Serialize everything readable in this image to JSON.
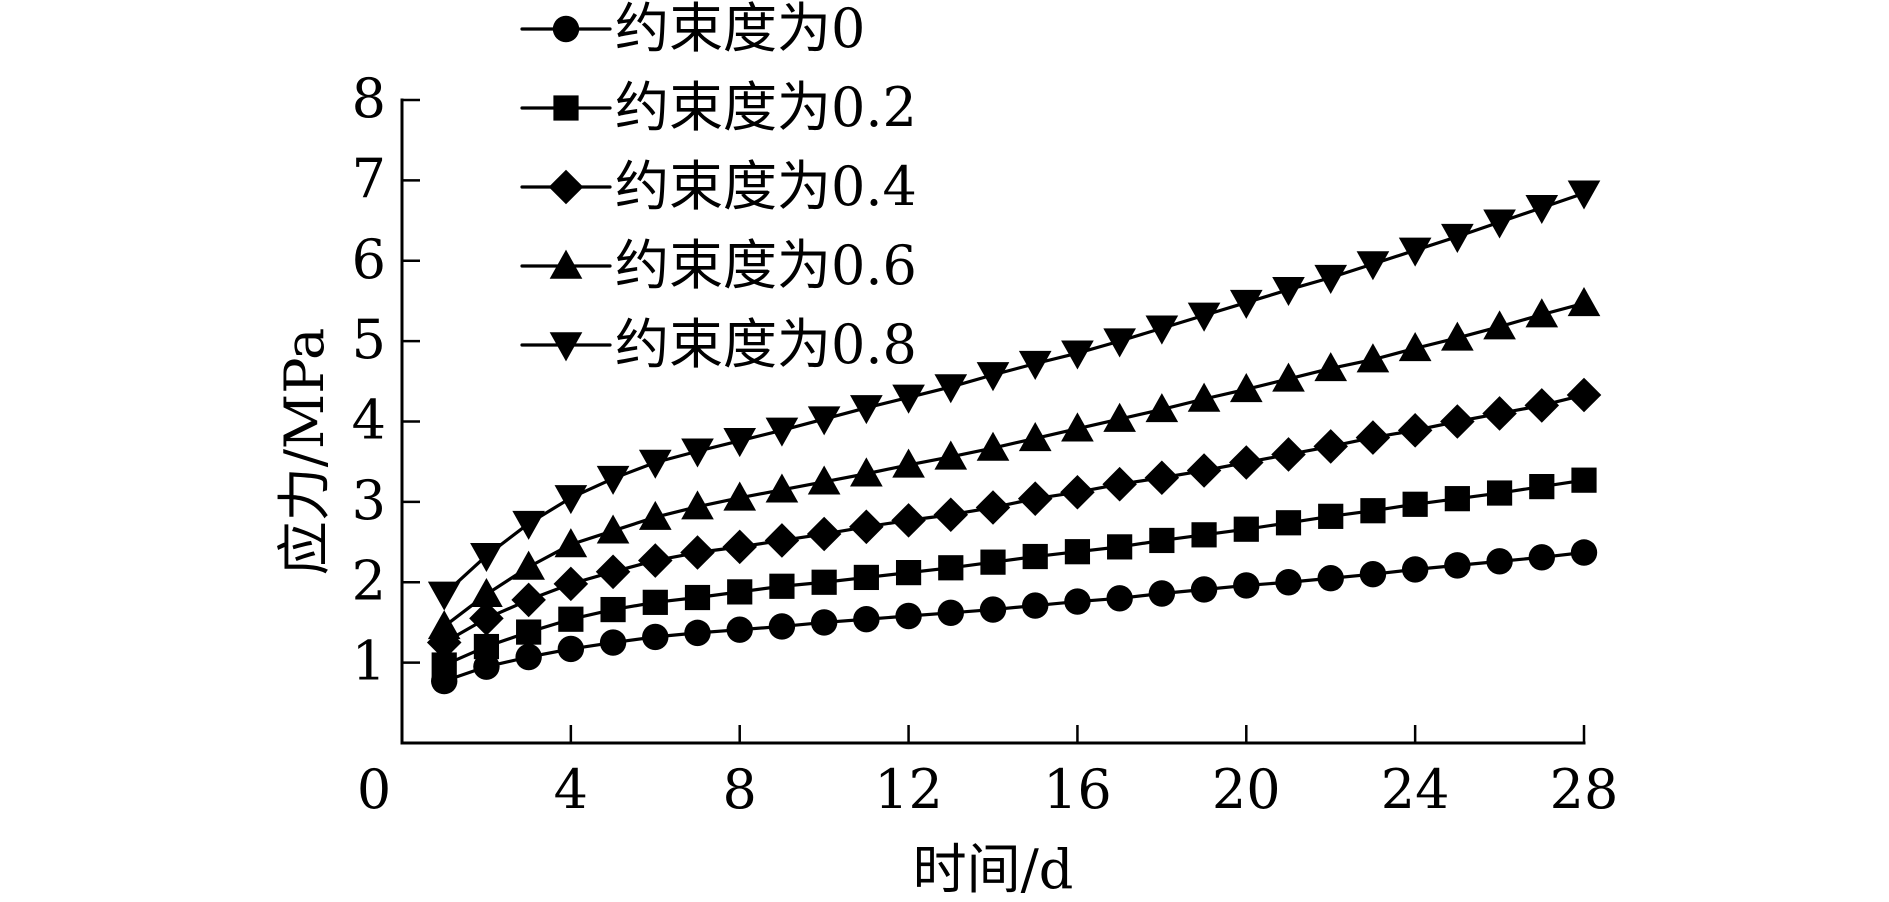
{
  "chart_data": {
    "type": "line",
    "title": "",
    "xlabel": "时间/d",
    "ylabel": "应力/MPa",
    "xlim": [
      0,
      28
    ],
    "ylim": [
      0,
      8
    ],
    "x_ticks": [
      0,
      4,
      8,
      12,
      16,
      20,
      24,
      28
    ],
    "y_ticks": [
      1,
      2,
      3,
      4,
      5,
      6,
      7,
      8
    ],
    "grid": false,
    "legend_position": "top-left",
    "line_color": "#000000",
    "x": [
      1,
      2,
      3,
      4,
      5,
      6,
      7,
      8,
      9,
      10,
      11,
      12,
      13,
      14,
      15,
      16,
      17,
      18,
      19,
      20,
      21,
      22,
      23,
      24,
      25,
      26,
      27,
      28
    ],
    "series": [
      {
        "name": "约束度为0",
        "marker": "circle",
        "values": [
          0.77,
          0.95,
          1.07,
          1.17,
          1.25,
          1.32,
          1.37,
          1.41,
          1.45,
          1.5,
          1.54,
          1.58,
          1.62,
          1.66,
          1.71,
          1.76,
          1.8,
          1.86,
          1.91,
          1.96,
          2.0,
          2.05,
          2.1,
          2.16,
          2.21,
          2.26,
          2.31,
          2.37
        ]
      },
      {
        "name": "约束度为0.2",
        "marker": "square",
        "values": [
          0.97,
          1.2,
          1.38,
          1.54,
          1.66,
          1.75,
          1.81,
          1.88,
          1.95,
          2.0,
          2.06,
          2.12,
          2.18,
          2.25,
          2.32,
          2.38,
          2.44,
          2.52,
          2.59,
          2.66,
          2.74,
          2.82,
          2.89,
          2.97,
          3.04,
          3.11,
          3.19,
          3.27
        ]
      },
      {
        "name": "约束度为0.4",
        "marker": "diamond",
        "values": [
          1.25,
          1.55,
          1.78,
          1.98,
          2.13,
          2.27,
          2.37,
          2.44,
          2.52,
          2.6,
          2.69,
          2.77,
          2.84,
          2.93,
          3.04,
          3.12,
          3.22,
          3.3,
          3.39,
          3.49,
          3.59,
          3.69,
          3.8,
          3.89,
          4.0,
          4.1,
          4.2,
          4.33
        ]
      },
      {
        "name": "约束度为0.6",
        "marker": "triangle-up",
        "values": [
          1.45,
          1.85,
          2.19,
          2.47,
          2.64,
          2.81,
          2.94,
          3.05,
          3.15,
          3.25,
          3.35,
          3.46,
          3.56,
          3.67,
          3.79,
          3.91,
          4.03,
          4.15,
          4.28,
          4.4,
          4.53,
          4.66,
          4.77,
          4.91,
          5.04,
          5.18,
          5.33,
          5.47
        ]
      },
      {
        "name": "约束度为0.8",
        "marker": "triangle-down",
        "values": [
          1.85,
          2.33,
          2.73,
          3.05,
          3.29,
          3.49,
          3.63,
          3.76,
          3.89,
          4.03,
          4.17,
          4.3,
          4.43,
          4.58,
          4.72,
          4.85,
          5.0,
          5.16,
          5.32,
          5.48,
          5.64,
          5.79,
          5.96,
          6.13,
          6.3,
          6.48,
          6.66,
          6.84
        ]
      }
    ]
  }
}
